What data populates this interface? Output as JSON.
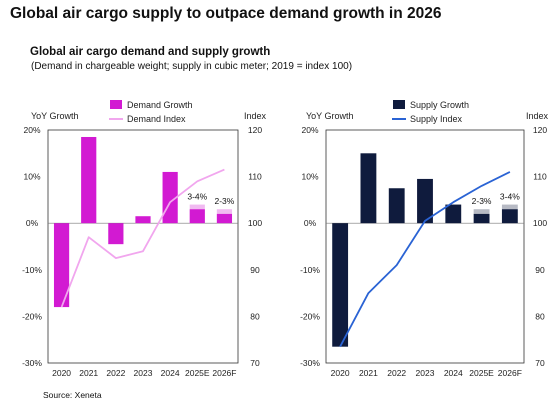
{
  "headline": "Global air cargo supply to outpace demand growth in 2026",
  "subtitle": "Global air cargo demand and supply growth",
  "note": "(Demand in chargeable weight; supply in cubic meter; 2019 = index 100)",
  "source": "Source: Xeneta",
  "chart_data": [
    {
      "type": "bar",
      "categories": [
        "2020",
        "2021",
        "2022",
        "2023",
        "2024",
        "2025E",
        "2026F"
      ],
      "left_axis_label": "YoY Growth",
      "right_axis_label": "Index",
      "left_ticks": [
        "20%",
        "10%",
        "0%",
        "-10%",
        "-20%",
        "-30%"
      ],
      "right_ticks": [
        "120",
        "110",
        "100",
        "90",
        "80",
        "70"
      ],
      "ylim": [
        -30,
        20
      ],
      "y2lim": [
        70,
        120
      ],
      "grid": false,
      "legend_position": "top",
      "series": [
        {
          "name": "Demand Growth",
          "kind": "bar",
          "axis": "left",
          "color": "#d21ad2",
          "values": [
            -18,
            18.5,
            -4.5,
            1.5,
            11,
            3,
            2
          ],
          "range_high": [
            null,
            null,
            null,
            null,
            null,
            4,
            3
          ]
        },
        {
          "name": "Demand Index",
          "kind": "line",
          "axis": "right",
          "color": "#f1a6ee",
          "values": [
            82,
            97,
            92.5,
            94,
            104.5,
            109,
            111.5
          ]
        }
      ],
      "annotations": [
        {
          "category": "2025E",
          "text": "3-4%"
        },
        {
          "category": "2026F",
          "text": "2-3%"
        }
      ]
    },
    {
      "type": "bar",
      "categories": [
        "2020",
        "2021",
        "2022",
        "2023",
        "2024",
        "2025E",
        "2026F"
      ],
      "left_axis_label": "YoY Growth",
      "right_axis_label": "Index",
      "left_ticks": [
        "20%",
        "10%",
        "0%",
        "-10%",
        "-20%",
        "-30%"
      ],
      "right_ticks": [
        "120",
        "110",
        "100",
        "90",
        "80",
        "70"
      ],
      "ylim": [
        -30,
        20
      ],
      "y2lim": [
        70,
        120
      ],
      "grid": false,
      "legend_position": "top",
      "series": [
        {
          "name": "Supply Growth",
          "kind": "bar",
          "axis": "left",
          "color": "#0f1b3d",
          "values": [
            -26.5,
            15,
            7.5,
            9.5,
            4,
            2,
            3
          ],
          "range_high": [
            null,
            null,
            null,
            null,
            null,
            3,
            4
          ]
        },
        {
          "name": "Supply Index",
          "kind": "line",
          "axis": "right",
          "color": "#2a63d4",
          "values": [
            73.5,
            85,
            91,
            100.5,
            104.5,
            108,
            111
          ]
        }
      ],
      "annotations": [
        {
          "category": "2025E",
          "text": "2-3%"
        },
        {
          "category": "2026F",
          "text": "3-4%"
        }
      ]
    }
  ]
}
